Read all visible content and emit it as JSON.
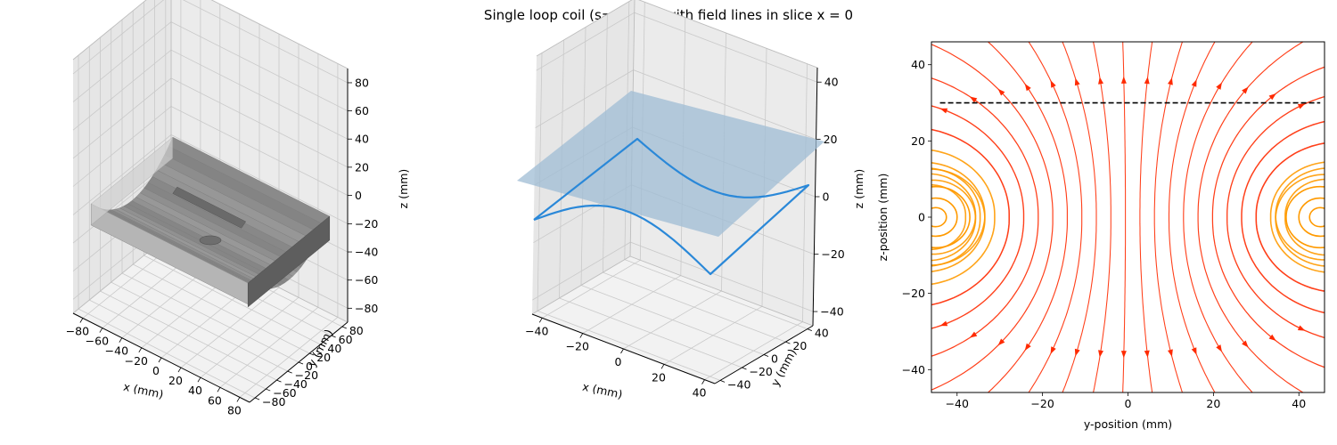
{
  "suptitle": "Single loop coil (s=90mm) with field lines in slice x = 0",
  "colors": {
    "mesh": "#8a8a8a",
    "mesh_dark": "#5e5e5e",
    "coil": "#2a88d8",
    "slice": "#9fbcd4",
    "field_strong": "#ff2a00",
    "field_weak": "#ff9a00",
    "dashed": "#000000",
    "pane": "#f2f2f2",
    "grid": "#c9c9c9"
  },
  "chart_data": [
    {
      "type": "3d-surface",
      "xlabel": "x (mm)",
      "ylabel": "y (mm)",
      "zlabel": "z (mm)",
      "xlim": [
        -90,
        90
      ],
      "ylim": [
        -90,
        90
      ],
      "zlim": [
        -90,
        90
      ],
      "xticks": [
        "−80",
        "−60",
        "−40",
        "−20",
        "0",
        "20",
        "40",
        "60",
        "80"
      ],
      "yticks": [
        "−80",
        "−60",
        "−40",
        "−20",
        "0",
        "20",
        "40",
        "60",
        "80"
      ],
      "zticks": [
        "−80",
        "−60",
        "−40",
        "−20",
        "0",
        "20",
        "40",
        "60",
        "80"
      ]
    },
    {
      "type": "3d-line",
      "xlabel": "x (mm)",
      "ylabel": "y (mm)",
      "zlabel": "z (mm)",
      "xlim": [
        -45,
        45
      ],
      "ylim": [
        -45,
        45
      ],
      "zlim": [
        -45,
        45
      ],
      "xticks": [
        "−40",
        "−20",
        "0",
        "20",
        "40"
      ],
      "yticks": [
        "−40",
        "−20",
        "0",
        "20",
        "40"
      ],
      "zticks": [
        "−40",
        "−20",
        "0",
        "20",
        "40"
      ],
      "slice_plane": {
        "x": 0
      }
    },
    {
      "type": "streamplot",
      "xlabel": "y-position (mm)",
      "ylabel": "z-position (mm)",
      "xlim": [
        -46,
        46
      ],
      "ylim": [
        -46,
        46
      ],
      "xticks": [
        -40,
        -20,
        0,
        20,
        40
      ],
      "yticks": [
        -40,
        -20,
        0,
        20,
        40
      ],
      "tick_labels_x": [
        "−40",
        "−20",
        "0",
        "20",
        "40"
      ],
      "tick_labels_y": [
        "−40",
        "−20",
        "0",
        "20",
        "40"
      ],
      "coil_radius": 45,
      "dashed_line_z": 30
    }
  ]
}
